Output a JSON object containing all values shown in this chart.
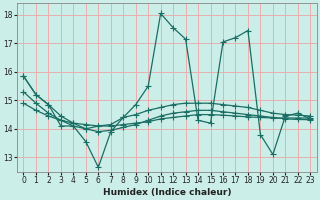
{
  "xlabel": "Humidex (Indice chaleur)",
  "bg_color": "#cceee8",
  "grid_color": "#e8b0b0",
  "line_color": "#1a6e64",
  "xlim": [
    -0.5,
    23.5
  ],
  "ylim": [
    12.5,
    18.4
  ],
  "yticks": [
    13,
    14,
    15,
    16,
    17,
    18
  ],
  "xticks": [
    0,
    1,
    2,
    3,
    4,
    5,
    6,
    7,
    8,
    9,
    10,
    11,
    12,
    13,
    14,
    15,
    16,
    17,
    18,
    19,
    20,
    21,
    22,
    23
  ],
  "line1_y": [
    15.85,
    15.2,
    14.85,
    14.1,
    14.1,
    13.55,
    12.65,
    13.9,
    14.4,
    14.85,
    15.5,
    18.05,
    17.55,
    17.15,
    14.3,
    14.2,
    17.05,
    17.2,
    17.45,
    13.8,
    13.1,
    14.45,
    14.55,
    14.35
  ],
  "line2_y": [
    15.85,
    15.2,
    14.85,
    14.45,
    14.2,
    14.0,
    14.1,
    14.15,
    14.4,
    14.5,
    14.65,
    14.75,
    14.85,
    14.9,
    14.9,
    14.9,
    14.85,
    14.8,
    14.75,
    14.65,
    14.55,
    14.5,
    14.48,
    14.45
  ],
  "line3_y": [
    14.9,
    14.65,
    14.45,
    14.3,
    14.2,
    14.15,
    14.1,
    14.1,
    14.15,
    14.2,
    14.25,
    14.35,
    14.4,
    14.45,
    14.5,
    14.5,
    14.48,
    14.45,
    14.42,
    14.4,
    14.38,
    14.38,
    14.38,
    14.38
  ],
  "line4_y": [
    15.3,
    14.9,
    14.55,
    14.3,
    14.1,
    14.0,
    13.9,
    13.95,
    14.05,
    14.15,
    14.3,
    14.45,
    14.55,
    14.6,
    14.65,
    14.65,
    14.6,
    14.55,
    14.5,
    14.45,
    14.4,
    14.35,
    14.33,
    14.32
  ]
}
